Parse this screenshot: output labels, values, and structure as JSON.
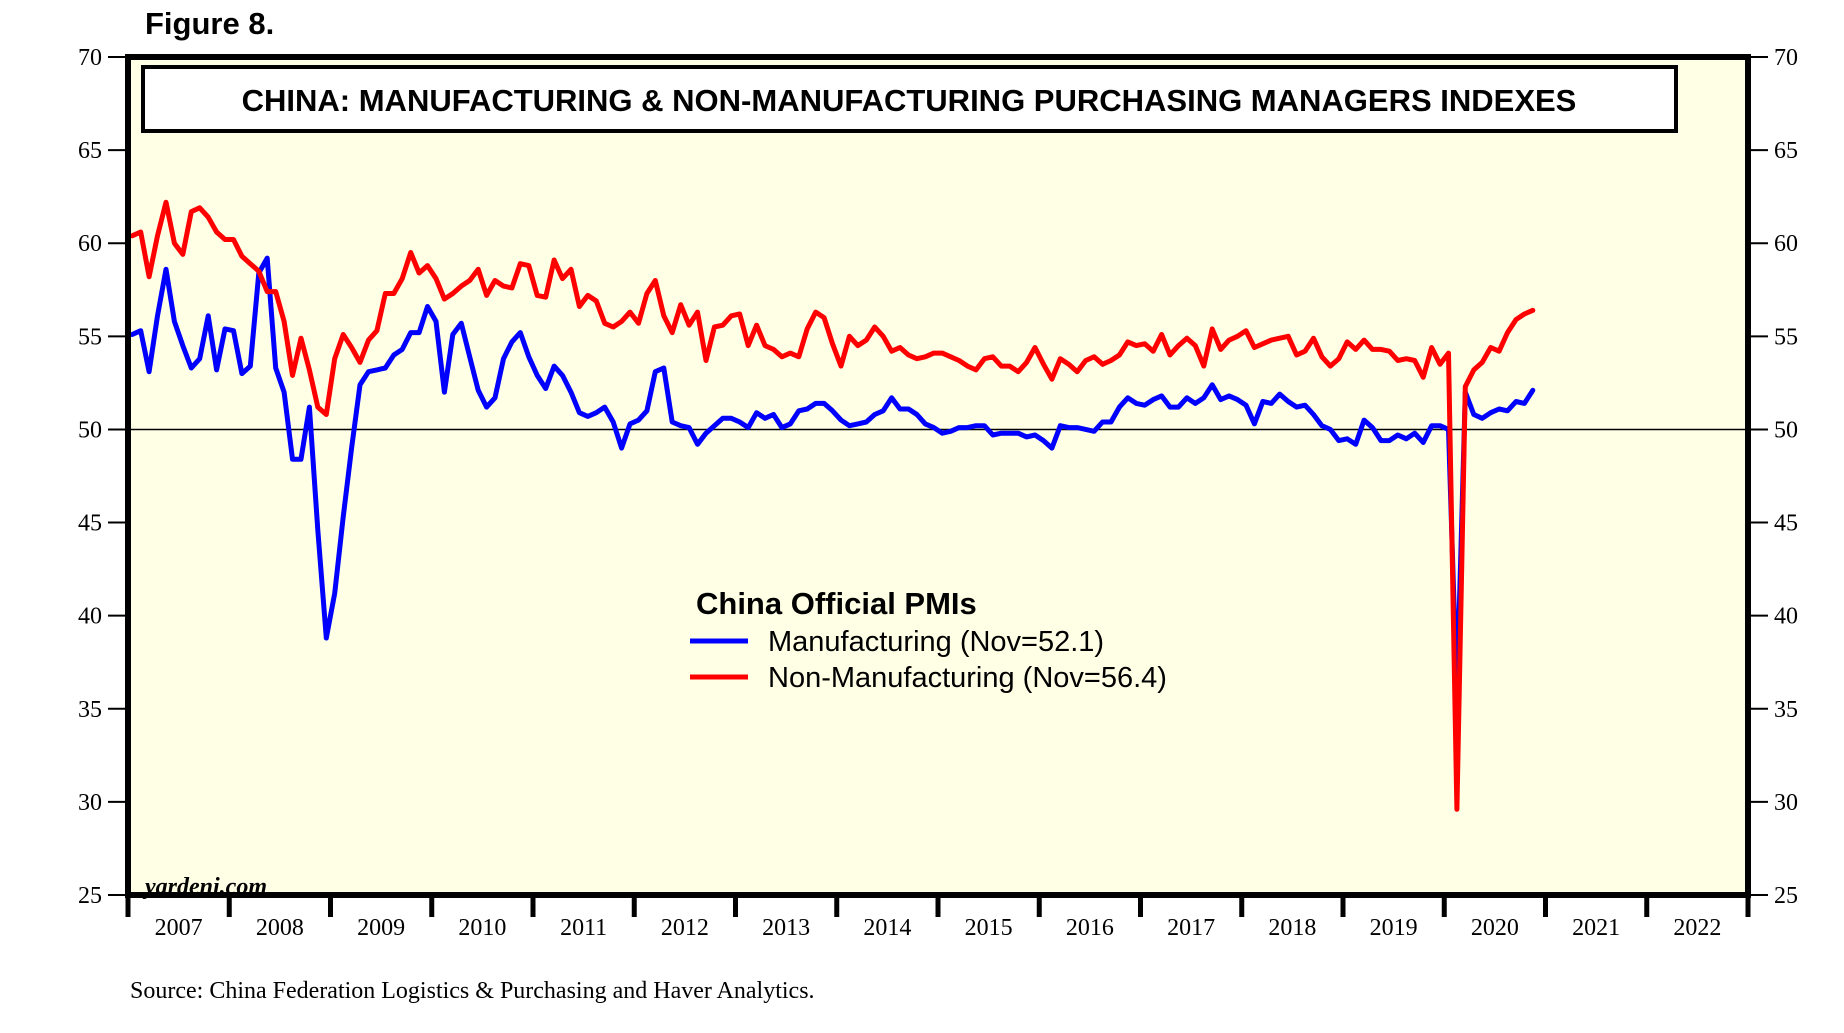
{
  "figure_label": "Figure 8.",
  "source": "Source: China Federation Logistics & Purchasing and Haver Analytics.",
  "watermark": "yardeni.com",
  "chart_data": {
    "type": "line",
    "title": "CHINA: MANUFACTURING & NON-MANUFACTURING PURCHASING MANAGERS INDEXES",
    "legend_title": "China Official PMIs",
    "legend_placement": "center",
    "xlabel": "",
    "ylabel": "",
    "ylim": [
      25,
      70
    ],
    "yticks": [
      25,
      30,
      35,
      40,
      45,
      50,
      55,
      60,
      65,
      70
    ],
    "y_axes": [
      "left",
      "right"
    ],
    "reference_line": 50,
    "x_start": "2007-01",
    "x_frequency": "monthly",
    "xlim_years": [
      2007,
      2023
    ],
    "x_tick_labels": [
      "2007",
      "2008",
      "2009",
      "2010",
      "2011",
      "2012",
      "2013",
      "2014",
      "2015",
      "2016",
      "2017",
      "2018",
      "2019",
      "2020",
      "2021",
      "2022"
    ],
    "grid": false,
    "background": "#ffffe6",
    "series": [
      {
        "name": "Manufacturing (Nov=52.1)",
        "color": "#0000ff",
        "values": [
          55.1,
          55.3,
          53.1,
          56.1,
          58.6,
          55.8,
          54.5,
          53.3,
          53.8,
          56.1,
          53.2,
          55.4,
          55.3,
          53.0,
          53.4,
          58.4,
          59.2,
          53.3,
          52.0,
          48.4,
          48.4,
          51.2,
          44.6,
          38.8,
          41.2,
          45.3,
          49.0,
          52.4,
          53.1,
          53.2,
          53.3,
          54.0,
          54.3,
          55.2,
          55.2,
          56.6,
          55.8,
          52.0,
          55.1,
          55.7,
          53.9,
          52.1,
          51.2,
          51.7,
          53.8,
          54.7,
          55.2,
          53.9,
          52.9,
          52.2,
          53.4,
          52.9,
          52.0,
          50.9,
          50.7,
          50.9,
          51.2,
          50.4,
          49.0,
          50.3,
          50.5,
          51.0,
          53.1,
          53.3,
          50.4,
          50.2,
          50.1,
          49.2,
          49.8,
          50.2,
          50.6,
          50.6,
          50.4,
          50.1,
          50.9,
          50.6,
          50.8,
          50.1,
          50.3,
          51.0,
          51.1,
          51.4,
          51.4,
          51.0,
          50.5,
          50.2,
          50.3,
          50.4,
          50.8,
          51.0,
          51.7,
          51.1,
          51.1,
          50.8,
          50.3,
          50.1,
          49.8,
          49.9,
          50.1,
          50.1,
          50.2,
          50.2,
          49.7,
          49.8,
          49.8,
          49.8,
          49.6,
          49.7,
          49.4,
          49.0,
          50.2,
          50.1,
          50.1,
          50.0,
          49.9,
          50.4,
          50.4,
          51.2,
          51.7,
          51.4,
          51.3,
          51.6,
          51.8,
          51.2,
          51.2,
          51.7,
          51.4,
          51.7,
          52.4,
          51.6,
          51.8,
          51.6,
          51.3,
          50.3,
          51.5,
          51.4,
          51.9,
          51.5,
          51.2,
          51.3,
          50.8,
          50.2,
          50.0,
          49.4,
          49.5,
          49.2,
          50.5,
          50.1,
          49.4,
          49.4,
          49.7,
          49.5,
          49.8,
          49.3,
          50.2,
          50.2,
          50.0,
          35.7,
          52.0,
          50.8,
          50.6,
          50.9,
          51.1,
          51.0,
          51.5,
          51.4,
          52.1
        ]
      },
      {
        "name": "Non-Manufacturing (Nov=56.4)",
        "color": "#ff0000",
        "values": [
          60.4,
          60.6,
          58.2,
          60.4,
          62.2,
          60.0,
          59.4,
          61.7,
          61.9,
          61.4,
          60.6,
          60.2,
          60.2,
          59.3,
          58.9,
          58.5,
          57.4,
          57.4,
          55.8,
          52.9,
          54.9,
          53.2,
          51.2,
          50.8,
          53.8,
          55.1,
          54.4,
          53.6,
          54.8,
          55.3,
          57.3,
          57.3,
          58.1,
          59.5,
          58.4,
          58.8,
          58.1,
          57.0,
          57.3,
          57.7,
          58.0,
          58.6,
          57.2,
          58.0,
          57.7,
          57.6,
          58.9,
          58.8,
          57.2,
          57.1,
          59.1,
          58.1,
          58.6,
          56.6,
          57.2,
          56.9,
          55.7,
          55.5,
          55.8,
          56.3,
          55.7,
          57.3,
          58.0,
          56.1,
          55.2,
          56.7,
          55.6,
          56.3,
          53.7,
          55.5,
          55.6,
          56.1,
          56.2,
          54.5,
          55.6,
          54.5,
          54.3,
          53.9,
          54.1,
          53.9,
          55.4,
          56.3,
          56.0,
          54.6,
          53.4,
          55.0,
          54.5,
          54.8,
          55.5,
          55.0,
          54.2,
          54.4,
          54.0,
          53.8,
          53.9,
          54.1,
          54.1,
          53.9,
          53.7,
          53.4,
          53.2,
          53.8,
          53.9,
          53.4,
          53.4,
          53.1,
          53.6,
          54.4,
          53.5,
          52.7,
          53.8,
          53.5,
          53.1,
          53.7,
          53.9,
          53.5,
          53.7,
          54.0,
          54.7,
          54.5,
          54.6,
          54.2,
          55.1,
          54.0,
          54.5,
          54.9,
          54.5,
          53.4,
          55.4,
          54.3,
          54.8,
          55.0,
          55.3,
          54.4,
          54.6,
          54.8,
          54.9,
          55.0,
          54.0,
          54.2,
          54.9,
          53.9,
          53.4,
          53.8,
          54.7,
          54.3,
          54.8,
          54.3,
          54.3,
          54.2,
          53.7,
          53.8,
          53.7,
          52.8,
          54.4,
          53.5,
          54.1,
          29.6,
          52.3,
          53.2,
          53.6,
          54.4,
          54.2,
          55.2,
          55.9,
          56.2,
          56.4
        ]
      }
    ]
  }
}
